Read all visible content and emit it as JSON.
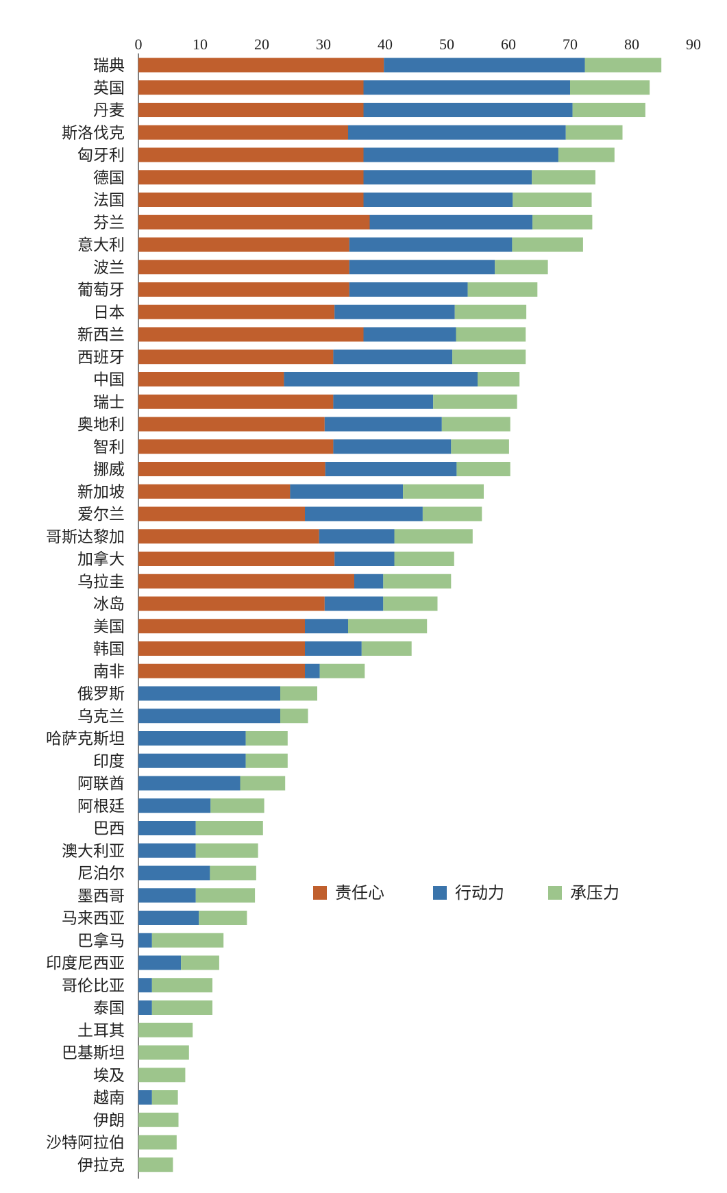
{
  "chart_data": {
    "type": "bar",
    "orientation": "horizontal",
    "stacked": true,
    "title": "",
    "xlabel": "",
    "ylabel": "",
    "xlim": [
      0,
      90
    ],
    "xticks": [
      0,
      10,
      20,
      30,
      40,
      50,
      60,
      70,
      80,
      90
    ],
    "x_axis_position": "top",
    "grid": false,
    "legend_position": "inside-lower-right",
    "categories": [
      "瑞典",
      "英国",
      "丹麦",
      "斯洛伐克",
      "匈牙利",
      "德国",
      "法国",
      "芬兰",
      "意大利",
      "波兰",
      "葡萄牙",
      "日本",
      "新西兰",
      "西班牙",
      "中国",
      "瑞士",
      "奥地利",
      "智利",
      "挪威",
      "新加坡",
      "爱尔兰",
      "哥斯达黎加",
      "加拿大",
      "乌拉圭",
      "冰岛",
      "美国",
      "韩国",
      "南非",
      "俄罗斯",
      "乌克兰",
      "哈萨克斯坦",
      "印度",
      "阿联酋",
      "阿根廷",
      "巴西",
      "澳大利亚",
      "尼泊尔",
      "墨西哥",
      "马来西亚",
      "巴拿马",
      "印度尼西亚",
      "哥伦比亚",
      "泰国",
      "土耳其",
      "巴基斯坦",
      "埃及",
      "越南",
      "伊朗",
      "沙特阿拉伯",
      "伊拉克"
    ],
    "series": [
      {
        "name": "责任心",
        "color": "#c05f2d",
        "values": [
          39.8,
          36.5,
          36.5,
          34,
          36.5,
          36.5,
          36.5,
          37.5,
          34.2,
          34.2,
          34.2,
          31.8,
          36.5,
          31.6,
          23.6,
          31.6,
          30.2,
          31.6,
          30.3,
          24.6,
          27,
          29.3,
          31.8,
          35,
          30.2,
          27,
          27,
          27,
          0,
          0,
          0,
          0,
          0,
          0,
          0,
          0,
          0,
          0,
          0,
          0,
          0,
          0,
          0,
          0,
          0,
          0,
          0,
          0,
          0,
          0
        ]
      },
      {
        "name": "行动力",
        "color": "#3a74ab",
        "values": [
          32.6,
          33.5,
          33.9,
          35.3,
          31.6,
          27.3,
          24.2,
          26.4,
          26.4,
          23.6,
          19.2,
          19.5,
          15,
          19.3,
          31.4,
          16.2,
          19,
          19.1,
          21.3,
          18.3,
          19.1,
          12.2,
          9.7,
          4.7,
          9.5,
          7,
          9.2,
          2.4,
          23,
          23,
          17.4,
          17.4,
          16.5,
          11.7,
          9.3,
          9.3,
          11.6,
          9.3,
          9.8,
          2.2,
          6.9,
          2.2,
          2.2,
          0,
          0,
          0,
          2.2,
          0,
          0,
          0
        ]
      },
      {
        "name": "承压力",
        "color": "#9dc58c",
        "values": [
          12.4,
          12.9,
          11.8,
          9.2,
          9.1,
          10.3,
          12.8,
          9.7,
          11.5,
          8.6,
          11.3,
          11.6,
          11.3,
          11.9,
          6.8,
          13.6,
          11.1,
          9.4,
          8.7,
          13.1,
          9.6,
          12.7,
          9.7,
          11,
          8.8,
          12.8,
          8.1,
          7.3,
          6,
          4.5,
          6.8,
          6.8,
          7.3,
          8.7,
          10.9,
          10.1,
          7.5,
          9.6,
          7.8,
          11.6,
          6.2,
          9.8,
          9.8,
          8.8,
          8.2,
          7.6,
          4.2,
          6.5,
          6.2,
          5.6
        ]
      }
    ]
  }
}
